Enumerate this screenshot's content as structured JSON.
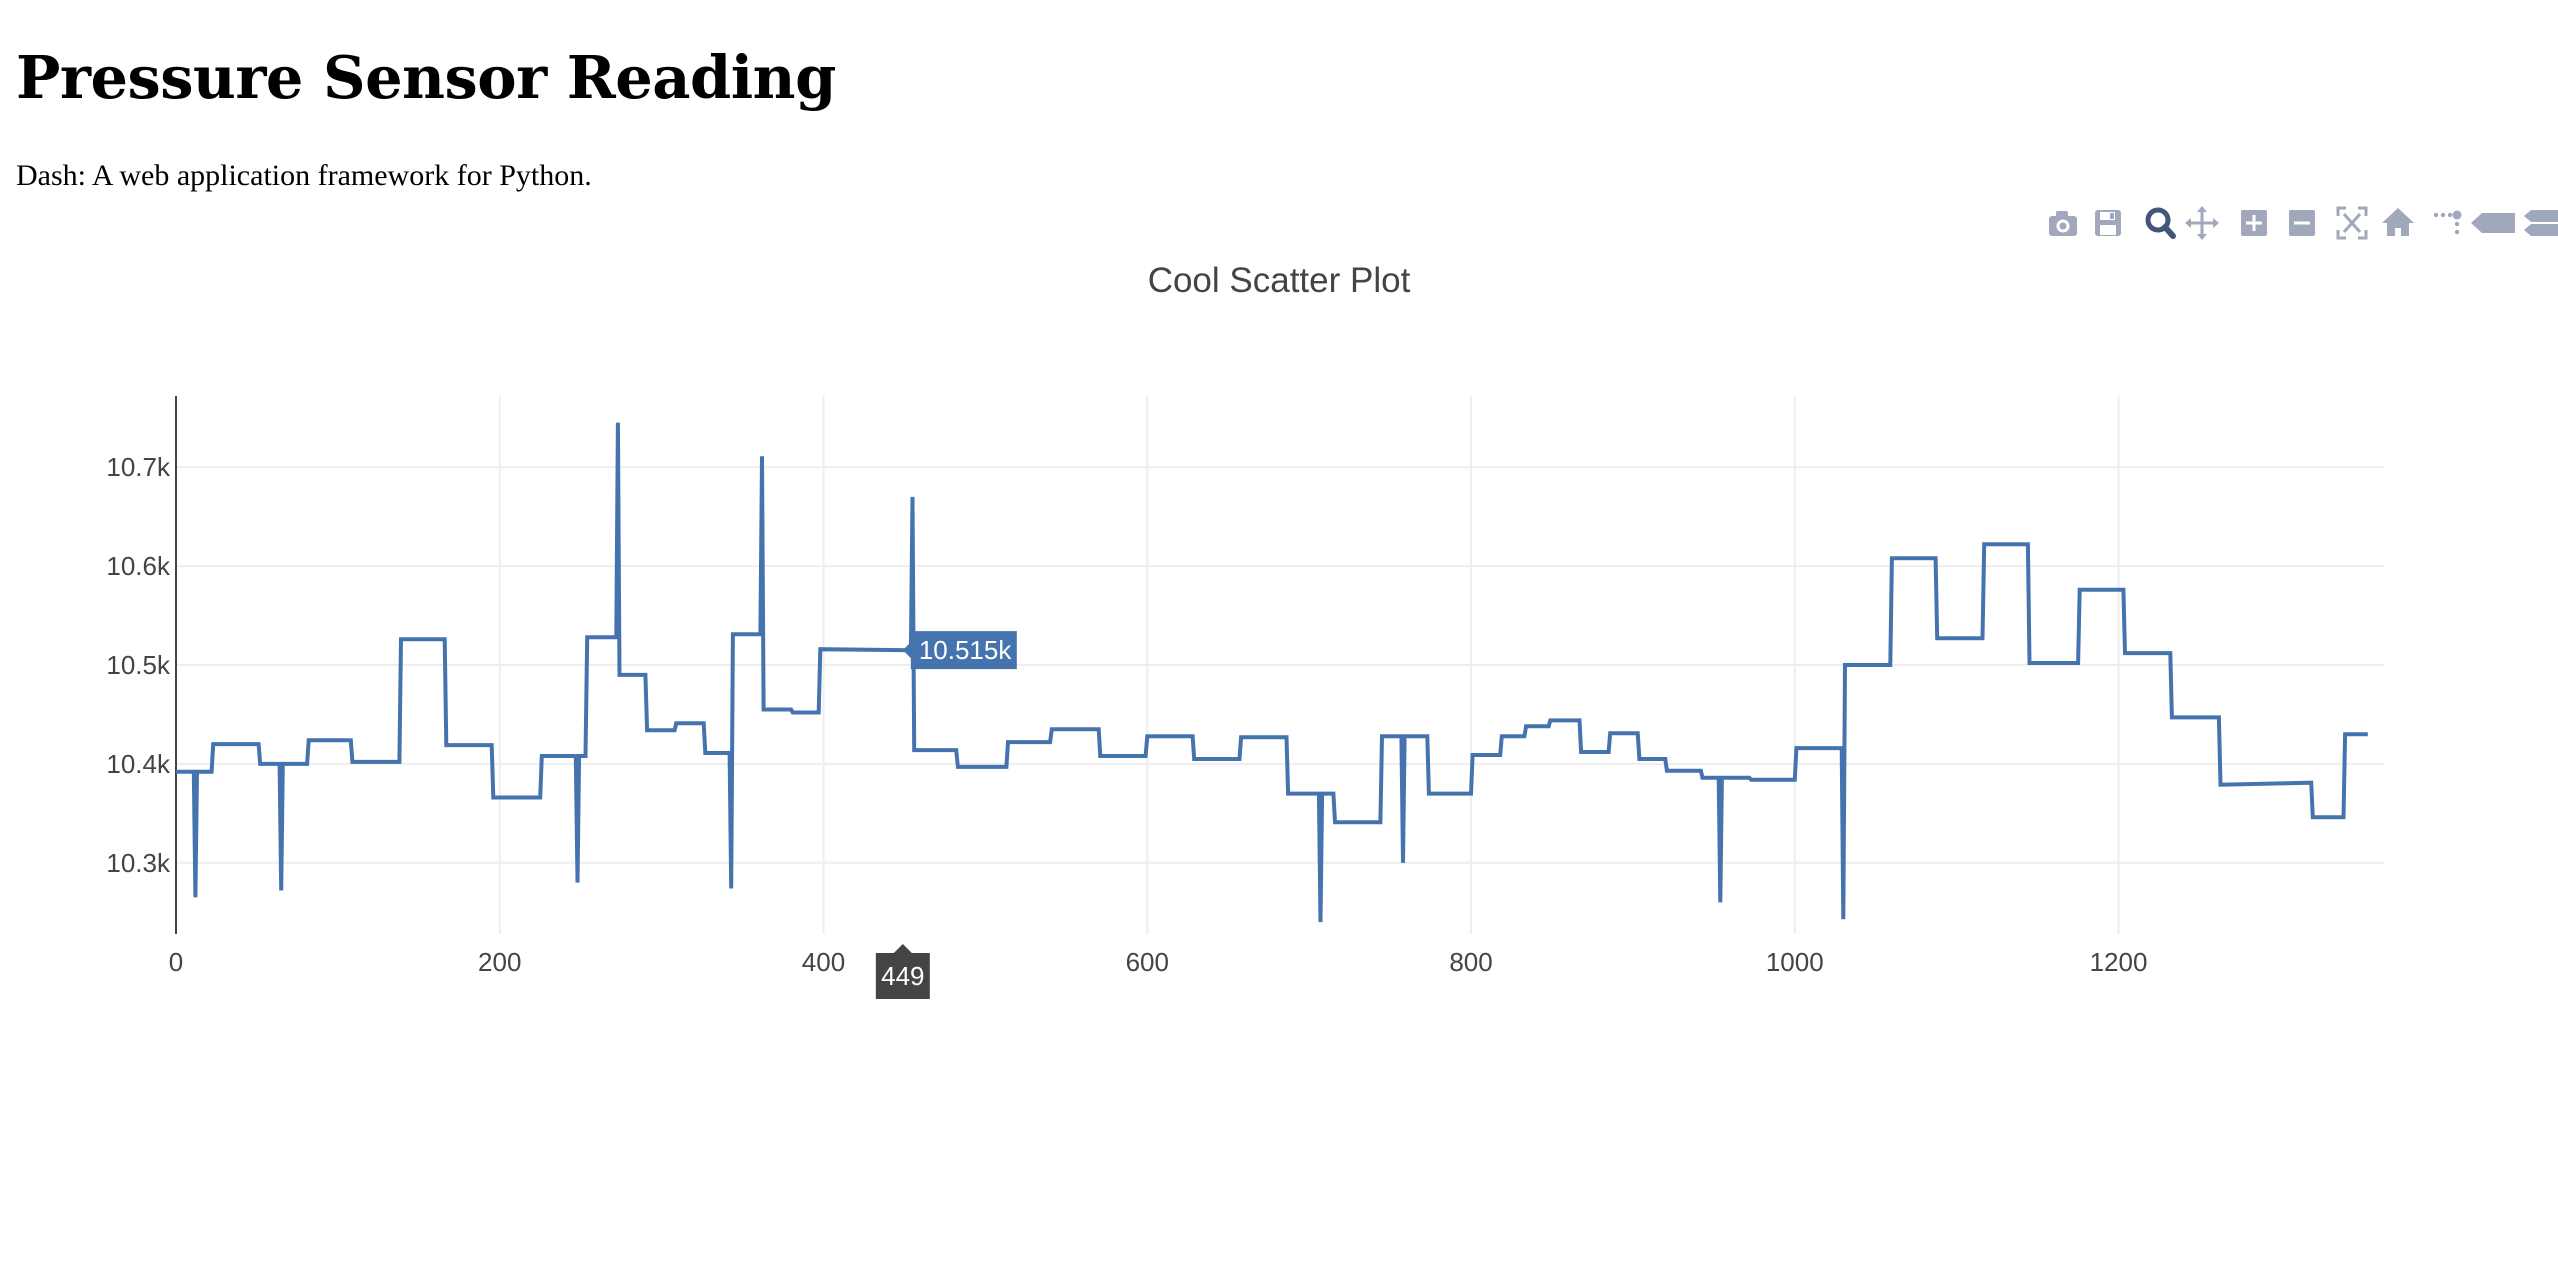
{
  "page": {
    "title": "Pressure Sensor Reading",
    "subtitle": "Dash: A web application framework for Python."
  },
  "modebar": {
    "buttons": [
      {
        "icon": "camera-icon",
        "active": false
      },
      {
        "icon": "save-icon",
        "active": false
      },
      {
        "icon": "zoom-icon",
        "active": true
      },
      {
        "icon": "pan-icon",
        "active": false
      },
      {
        "icon": "zoom-in-icon",
        "active": false
      },
      {
        "icon": "zoom-out-icon",
        "active": false
      },
      {
        "icon": "autoscale-icon",
        "active": false
      },
      {
        "icon": "reset-axes-icon",
        "active": false
      },
      {
        "icon": "spike-lines-icon",
        "active": false
      },
      {
        "icon": "hover-closest-icon",
        "active": false
      },
      {
        "icon": "hover-compare-icon",
        "active": false
      },
      {
        "icon": "plotly-logo-icon",
        "active": false
      }
    ],
    "colors": {
      "inactive": "#a2a8bb",
      "active": "#44557a",
      "logo": "#3f6fe0"
    }
  },
  "chart_data": {
    "type": "line",
    "title": "Cool Scatter Plot",
    "xlabel": "",
    "ylabel": "",
    "xlim": [
      0,
      1364
    ],
    "ylim": [
      10228,
      10772
    ],
    "xticks": [
      0,
      200,
      400,
      600,
      800,
      1000,
      1200
    ],
    "xtick_labels": [
      "0",
      "200",
      "400",
      "600",
      "800",
      "1000",
      "1200"
    ],
    "yticks": [
      10300,
      10400,
      10500,
      10600,
      10700
    ],
    "ytick_labels": [
      "10.3k",
      "10.4k",
      "10.5k",
      "10.6k",
      "10.7k"
    ],
    "grid": true,
    "line_color": "#4573ad",
    "series": [
      {
        "x": [
          0,
          11,
          12,
          13,
          22,
          23,
          51,
          52,
          64,
          65,
          66,
          81,
          82,
          108,
          109,
          138,
          139,
          166,
          167,
          195,
          196,
          225,
          226,
          247,
          248,
          249,
          253,
          254,
          272,
          273,
          274,
          290,
          291,
          308,
          309,
          326,
          327,
          342,
          343,
          344,
          361,
          362,
          363,
          380,
          381,
          397,
          398,
          454,
          455,
          456,
          482,
          483,
          513,
          514,
          540,
          541,
          570,
          571,
          599,
          600,
          628,
          629,
          657,
          658,
          686,
          687,
          706,
          707,
          708,
          715,
          716,
          744,
          745,
          757,
          758,
          759,
          773,
          774,
          800,
          801,
          818,
          819,
          833,
          834,
          848,
          849,
          867,
          868,
          885,
          886,
          903,
          904,
          920,
          921,
          942,
          943,
          953,
          954,
          955,
          972,
          973,
          1000,
          1001,
          1029,
          1030,
          1031,
          1059,
          1060,
          1087,
          1088,
          1116,
          1117,
          1144,
          1145,
          1175,
          1176,
          1203,
          1204,
          1232,
          1233,
          1262,
          1263,
          1319,
          1320,
          1339,
          1340,
          1354
        ],
        "y": [
          10392,
          10392,
          10265,
          10392,
          10392,
          10420,
          10420,
          10400,
          10400,
          10272,
          10400,
          10400,
          10424,
          10424,
          10402,
          10402,
          10526,
          10526,
          10419,
          10419,
          10366,
          10366,
          10408,
          10408,
          10280,
          10408,
          10408,
          10528,
          10528,
          10745,
          10490,
          10490,
          10434,
          10434,
          10441,
          10441,
          10411,
          10411,
          10274,
          10531,
          10531,
          10711,
          10455,
          10455,
          10452,
          10452,
          10516,
          10515,
          10670,
          10414,
          10414,
          10397,
          10397,
          10422,
          10422,
          10435,
          10435,
          10408,
          10408,
          10428,
          10428,
          10405,
          10405,
          10427,
          10427,
          10370,
          10370,
          10240,
          10370,
          10370,
          10341,
          10341,
          10428,
          10428,
          10300,
          10428,
          10428,
          10370,
          10370,
          10409,
          10409,
          10428,
          10428,
          10438,
          10438,
          10444,
          10444,
          10412,
          10412,
          10431,
          10431,
          10405,
          10405,
          10393,
          10393,
          10386,
          10386,
          10260,
          10386,
          10386,
          10384,
          10384,
          10416,
          10416,
          10243,
          10500,
          10500,
          10608,
          10608,
          10527,
          10527,
          10622,
          10622,
          10502,
          10502,
          10576,
          10576,
          10512,
          10512,
          10447,
          10447,
          10379,
          10381,
          10346,
          10346,
          10430,
          10430
        ]
      }
    ],
    "hover": {
      "x_label": "449",
      "y_label": "10.515k",
      "x_value": 449,
      "y_value": 10515
    }
  }
}
